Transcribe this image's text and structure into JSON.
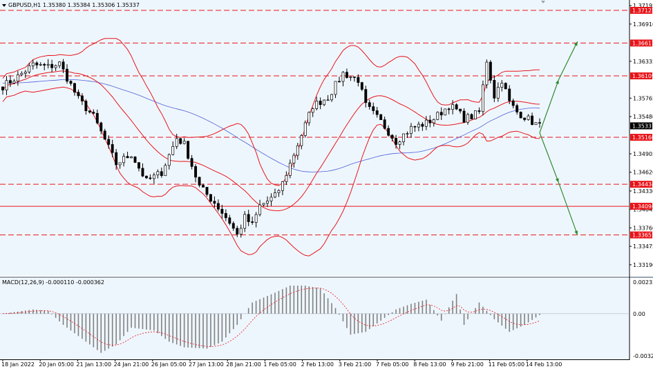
{
  "header": {
    "symbol": "GBPUSD,H1",
    "ohlc": "1.35380 1.35384 1.35306 1.35337"
  },
  "price_axis": {
    "ticks": [
      "1.37195",
      "1.36910",
      "1.36335",
      "1.35765",
      "1.35480",
      "1.34905",
      "1.34620",
      "1.34330",
      "1.34045",
      "1.33760",
      "1.33475",
      "1.33190"
    ],
    "current_price": "1.35337"
  },
  "levels": [
    {
      "price": "1.37122",
      "style": "dashed"
    },
    {
      "price": "1.36617",
      "style": "dashed"
    },
    {
      "price": "1.36109",
      "style": "dashed"
    },
    {
      "price": "1.35160",
      "style": "dashed"
    },
    {
      "price": "1.34434",
      "style": "dashed"
    },
    {
      "price": "1.34094",
      "style": "solid"
    },
    {
      "price": "1.33651",
      "style": "dashed"
    }
  ],
  "macd": {
    "label": "MACD(12,26,9) -0.000110 -0.000362",
    "ticks": [
      "0.002352",
      "0.00",
      "-0.003212"
    ]
  },
  "time_axis": {
    "labels": [
      "18 Jan 2022",
      "20 Jan 05:00",
      "21 Jan 13:00",
      "24 Jan 21:00",
      "26 Jan 05:00",
      "27 Jan 13:00",
      "28 Jan 21:00",
      "1 Feb 05:00",
      "2 Feb 13:00",
      "3 Feb 21:00",
      "7 Feb 05:00",
      "8 Feb 13:00",
      "9 Feb 21:00",
      "11 Feb 05:00",
      "14 Feb 13:00"
    ]
  },
  "colors": {
    "background": "#eef6fd",
    "candle": "#000000",
    "bollinger": "#e8141a",
    "moving_average": "#4b5fd6",
    "level_line": "#e8141a",
    "level_label": "#e8141a",
    "arrow": "#2e8b2e",
    "macd_hist": "#808080",
    "macd_signal": "#e8141a"
  },
  "chart_data": {
    "type": "candlestick",
    "symbol": "GBPUSD",
    "timeframe": "H1",
    "ylim": [
      1.3305,
      1.3725
    ],
    "close_path": [
      [
        0,
        1.3595
      ],
      [
        4,
        1.361
      ],
      [
        8,
        1.3628
      ],
      [
        12,
        1.3625
      ],
      [
        15,
        1.363
      ],
      [
        20,
        1.3575
      ],
      [
        24,
        1.3548
      ],
      [
        28,
        1.35
      ],
      [
        30,
        1.3475
      ],
      [
        34,
        1.349
      ],
      [
        38,
        1.3448
      ],
      [
        42,
        1.3462
      ],
      [
        46,
        1.3515
      ],
      [
        48,
        1.3505
      ],
      [
        52,
        1.344
      ],
      [
        56,
        1.3415
      ],
      [
        60,
        1.3385
      ],
      [
        62,
        1.3365
      ],
      [
        64,
        1.3392
      ],
      [
        66,
        1.338
      ],
      [
        68,
        1.341
      ],
      [
        72,
        1.3425
      ],
      [
        74,
        1.3445
      ],
      [
        78,
        1.3505
      ],
      [
        82,
        1.3565
      ],
      [
        86,
        1.3578
      ],
      [
        90,
        1.3615
      ],
      [
        94,
        1.3605
      ],
      [
        96,
        1.3565
      ],
      [
        100,
        1.354
      ],
      [
        104,
        1.351
      ],
      [
        108,
        1.353
      ],
      [
        112,
        1.3538
      ],
      [
        114,
        1.3545
      ],
      [
        118,
        1.3565
      ],
      [
        120,
        1.3558
      ],
      [
        122,
        1.3545
      ],
      [
        124,
        1.3548
      ],
      [
        126,
        1.3555
      ],
      [
        128,
        1.3635
      ],
      [
        130,
        1.358
      ],
      [
        132,
        1.3605
      ],
      [
        134,
        1.357
      ],
      [
        136,
        1.3555
      ],
      [
        138,
        1.3548
      ],
      [
        140,
        1.354
      ],
      [
        142,
        1.3533
      ]
    ],
    "forecast_from": [
      142,
      1.3523
    ],
    "forecast_up": [
      [
        147,
        1.3605
      ],
      [
        152,
        1.3664
      ]
    ],
    "forecast_down": [
      [
        147,
        1.3446
      ],
      [
        152,
        1.3365
      ]
    ],
    "macd_path": [
      [
        0,
        0.0
      ],
      [
        8,
        0.0003
      ],
      [
        12,
        0.0002
      ],
      [
        16,
        -0.0008
      ],
      [
        22,
        -0.002
      ],
      [
        26,
        -0.0028
      ],
      [
        30,
        -0.0022
      ],
      [
        34,
        -0.001
      ],
      [
        40,
        -0.0012
      ],
      [
        44,
        -0.002
      ],
      [
        48,
        -0.0024
      ],
      [
        54,
        -0.0025
      ],
      [
        58,
        -0.002
      ],
      [
        62,
        -0.0008
      ],
      [
        66,
        0.0008
      ],
      [
        72,
        0.0015
      ],
      [
        76,
        0.002
      ],
      [
        80,
        0.002
      ],
      [
        84,
        0.0018
      ],
      [
        88,
        0.0004
      ],
      [
        92,
        -0.0015
      ],
      [
        96,
        -0.0013
      ],
      [
        100,
        -0.0005
      ],
      [
        104,
        0.0003
      ],
      [
        108,
        0.0007
      ],
      [
        112,
        0.001
      ],
      [
        116,
        -0.0005
      ],
      [
        120,
        0.0014
      ],
      [
        122,
        -0.0008
      ],
      [
        126,
        0.0008
      ],
      [
        130,
        -0.0004
      ],
      [
        134,
        -0.0013
      ],
      [
        138,
        -0.0008
      ],
      [
        142,
        -0.0001
      ]
    ],
    "macd_ylim": [
      -0.003212,
      0.002352
    ]
  }
}
